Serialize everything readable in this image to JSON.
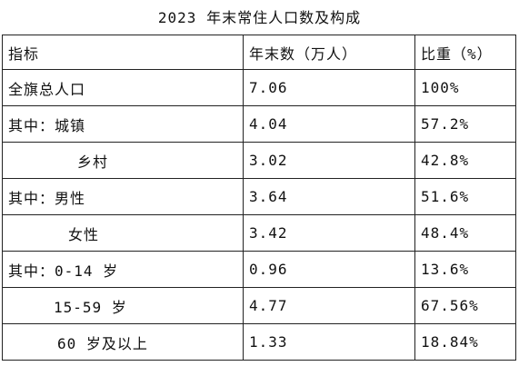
{
  "title": "2023 年末常住人口数及构成",
  "table": {
    "header": [
      "指标",
      "年末数（万人）",
      "比重（%）"
    ],
    "rows": [
      [
        "全旗总人口",
        "7.06",
        "100%"
      ],
      [
        "其中：城镇",
        "4.04",
        "57.2%"
      ],
      [
        "乡村",
        "3.02",
        "42.8%"
      ],
      [
        "其中：男性",
        "3.64",
        "51.6%"
      ],
      [
        "女性",
        "3.42",
        "48.4%"
      ],
      [
        "其中：0-14 岁",
        "0.96",
        "13.6%"
      ],
      [
        "15-59 岁",
        "4.77",
        "67.56%"
      ],
      [
        "60 岁及以上",
        "1.33",
        "18.84%"
      ]
    ]
  }
}
